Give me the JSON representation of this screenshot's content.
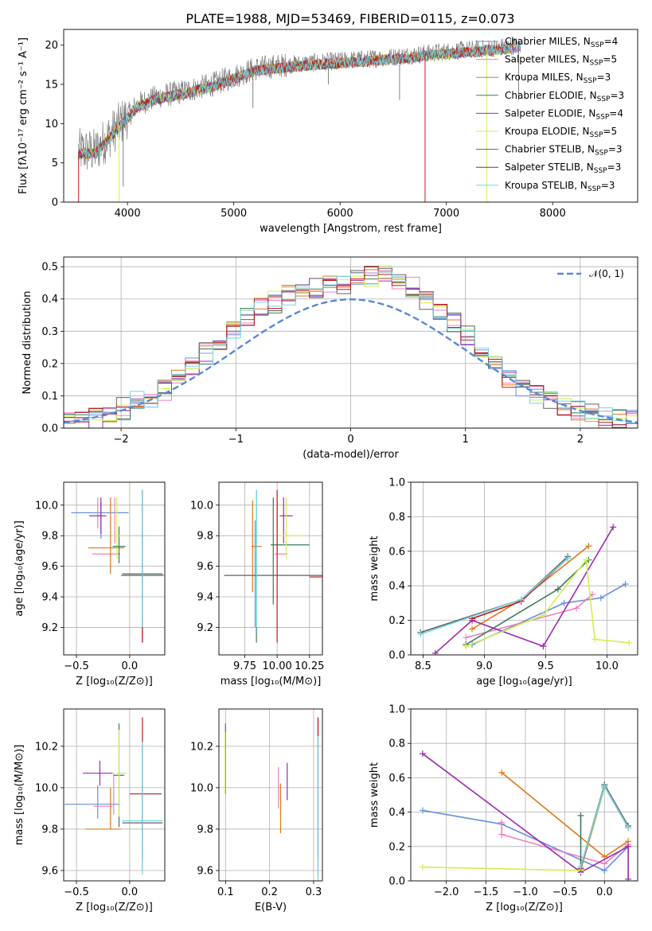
{
  "figure_title": "PLATE=1988, MJD=53469, FIBERID=0115, z=0.073",
  "colors": {
    "Chabrier MILES": "#6890e0",
    "Salpeter MILES": "#f080c0",
    "Kroupa MILES": "#e07818",
    "Chabrier ELODIE": "#3c7a5c",
    "Salpeter ELODIE": "#9c2cb0",
    "Kroupa ELODIE": "#d0f050",
    "Chabrier STELIB": "#606060",
    "Salpeter STELIB": "#c01818",
    "Kroupa STELIB": "#70d8e8"
  },
  "legend": [
    {
      "key": "Chabrier MILES",
      "name": "Chabrier MILES, N",
      "n": "4"
    },
    {
      "key": "Salpeter MILES",
      "name": "Salpeter MILES, N",
      "n": "5"
    },
    {
      "key": "Kroupa MILES",
      "name": "Kroupa MILES, N",
      "n": "3"
    },
    {
      "key": "Chabrier ELODIE",
      "name": "Chabrier ELODIE, N",
      "n": "3"
    },
    {
      "key": "Salpeter ELODIE",
      "name": "Salpeter ELODIE, N",
      "n": "4"
    },
    {
      "key": "Kroupa ELODIE",
      "name": "Kroupa ELODIE, N",
      "n": "5"
    },
    {
      "key": "Chabrier STELIB",
      "name": "Chabrier STELIB, N",
      "n": "3"
    },
    {
      "key": "Salpeter STELIB",
      "name": "Salpeter STELIB, N",
      "n": "3"
    },
    {
      "key": "Kroupa STELIB",
      "name": "Kroupa STELIB, N",
      "n": "3"
    }
  ],
  "legend_sub": "SSP",
  "chart_data": [
    {
      "id": "spectrum",
      "type": "line",
      "xlabel": "wavelength [Angstrom, rest frame]",
      "ylabel": "Flux [fλ10⁻¹⁷ erg cm⁻² s⁻¹ A⁻¹]",
      "xlim": [
        3400,
        8800
      ],
      "ylim": [
        0,
        22
      ],
      "xticks": [
        4000,
        5000,
        6000,
        7000,
        8000
      ],
      "yticks": [
        0,
        5,
        10,
        15,
        20
      ],
      "legend_position": "upper right",
      "grid": false,
      "continuum": [
        [
          3540,
          6.5
        ],
        [
          3700,
          6.5
        ],
        [
          3900,
          9.5
        ],
        [
          4000,
          11.0
        ],
        [
          4100,
          12.5
        ],
        [
          4300,
          13.5
        ],
        [
          4500,
          14.0
        ],
        [
          4800,
          15.0
        ],
        [
          5000,
          16.0
        ],
        [
          5200,
          17.0
        ],
        [
          5500,
          17.5
        ],
        [
          6000,
          18.0
        ],
        [
          6500,
          18.5
        ],
        [
          7000,
          19.2
        ],
        [
          7500,
          19.7
        ],
        [
          7700,
          20.0
        ]
      ],
      "spike_drops": [
        [
          3540,
          0
        ],
        [
          3920,
          0
        ],
        [
          3960,
          2
        ],
        [
          5180,
          12
        ],
        [
          5890,
          15
        ],
        [
          6560,
          13
        ],
        [
          6800,
          0
        ],
        [
          7380,
          0
        ],
        [
          7680,
          13
        ]
      ]
    },
    {
      "id": "residuals",
      "type": "line",
      "xlabel": "(data-model)/error",
      "ylabel": "Normed distribution",
      "xlim": [
        -2.5,
        2.5
      ],
      "ylim": [
        0,
        0.53
      ],
      "xticks": [
        -2,
        -1,
        0,
        1,
        2
      ],
      "yticks": [
        0.0,
        0.1,
        0.2,
        0.3,
        0.4,
        0.5
      ],
      "grid": true,
      "legend_label": "𝒩(0, 1)",
      "legend_position": "upper right",
      "reference": "normal(0,1)",
      "histogram_shape": [
        0.02,
        0.025,
        0.03,
        0.04,
        0.06,
        0.08,
        0.1,
        0.12,
        0.15,
        0.19,
        0.23,
        0.27,
        0.31,
        0.34,
        0.37,
        0.39,
        0.41,
        0.42,
        0.43,
        0.44,
        0.45,
        0.46,
        0.47,
        0.47,
        0.46,
        0.44,
        0.4,
        0.37,
        0.33,
        0.29,
        0.25,
        0.2,
        0.16,
        0.13,
        0.1,
        0.08,
        0.06,
        0.05,
        0.04,
        0.03,
        0.025,
        0.02
      ]
    },
    {
      "id": "age-vs-Z",
      "type": "scatter",
      "xlabel": "Z [log₁₀(Z/Z⊙)]",
      "ylabel": "age  [log₁₀(age/yr)]",
      "xlim": [
        -0.62,
        0.33
      ],
      "ylim": [
        9.02,
        10.15
      ],
      "xticks": [
        -0.5,
        0.0
      ],
      "yticks": [
        9.2,
        9.4,
        9.6,
        9.8,
        10.0
      ],
      "grid": true,
      "errorbars": [
        {
          "s": "Chabrier MILES",
          "x": -0.28,
          "y": 9.95,
          "xe": 0.27,
          "ye": 0.0
        },
        {
          "s": "Chabrier MILES",
          "x": -0.27,
          "y": 9.9,
          "xe": 0.0,
          "ye": 0.12
        },
        {
          "s": "Salpeter MILES",
          "x": -0.3,
          "y": 9.95,
          "xe": 0.0,
          "ye": 0.1
        },
        {
          "s": "Salpeter MILES",
          "x": -0.22,
          "y": 9.68,
          "xe": 0.13,
          "ye": 0.0
        },
        {
          "s": "Salpeter MILES",
          "x": -0.14,
          "y": 9.9,
          "xe": 0.0,
          "ye": 0.15
        },
        {
          "s": "Kroupa MILES",
          "x": -0.22,
          "y": 9.72,
          "xe": 0.17,
          "ye": 0.0
        },
        {
          "s": "Kroupa MILES",
          "x": -0.18,
          "y": 9.8,
          "xe": 0.0,
          "ye": 0.25
        },
        {
          "s": "Chabrier ELODIE",
          "x": -0.1,
          "y": 9.74,
          "xe": 0.0,
          "ye": 0.12
        },
        {
          "s": "Chabrier ELODIE",
          "x": 0.12,
          "y": 9.54,
          "xe": 0.2,
          "ye": 0.0
        },
        {
          "s": "Salpeter ELODIE",
          "x": -0.3,
          "y": 9.93,
          "xe": 0.08,
          "ye": 0.0
        },
        {
          "s": "Salpeter ELODIE",
          "x": -0.27,
          "y": 9.93,
          "xe": 0.0,
          "ye": 0.12
        },
        {
          "s": "Kroupa ELODIE",
          "x": -0.12,
          "y": 9.85,
          "xe": 0.0,
          "ye": 0.2
        },
        {
          "s": "Kroupa ELODIE",
          "x": -0.11,
          "y": 9.8,
          "xe": 0.06,
          "ye": 0.0
        },
        {
          "s": "Chabrier STELIB",
          "x": 0.12,
          "y": 9.55,
          "xe": 0.19,
          "ye": 0.0
        },
        {
          "s": "Chabrier STELIB",
          "x": 0.12,
          "y": 9.6,
          "xe": 0.0,
          "ye": 0.5
        },
        {
          "s": "Salpeter STELIB",
          "x": 0.12,
          "y": 9.6,
          "xe": 0.0,
          "ye": 0.5
        },
        {
          "s": "Kroupa STELIB",
          "x": 0.12,
          "y": 9.65,
          "xe": 0.0,
          "ye": 0.45
        },
        {
          "s": "Chabrier ELODIE",
          "x": -0.1,
          "y": 9.73,
          "xe": 0.06,
          "ye": 0.0
        }
      ]
    },
    {
      "id": "age-vs-mass",
      "type": "scatter",
      "xlabel": "mass [log₁₀(M/M⊙)]",
      "xlim": [
        9.55,
        10.35
      ],
      "ylim": [
        9.02,
        10.15
      ],
      "xticks": [
        9.75,
        10.0,
        10.25
      ],
      "yticks": [
        9.2,
        9.4,
        9.6,
        9.8,
        10.0
      ],
      "grid": true,
      "errorbars": [
        {
          "s": "Chabrier MILES",
          "x": 9.83,
          "y": 9.55,
          "xe": 0.0,
          "ye": 0.35
        },
        {
          "s": "Salpeter MILES",
          "x": 10.03,
          "y": 9.68,
          "xe": 0.05,
          "ye": 0.0
        },
        {
          "s": "Salpeter MILES",
          "x": 10.0,
          "y": 9.85,
          "xe": 0.0,
          "ye": 0.18
        },
        {
          "s": "Kroupa MILES",
          "x": 9.81,
          "y": 9.73,
          "xe": 0.0,
          "ye": 0.3
        },
        {
          "s": "Kroupa MILES",
          "x": 9.84,
          "y": 9.73,
          "xe": 0.04,
          "ye": 0.0
        },
        {
          "s": "Chabrier ELODIE",
          "x": 10.1,
          "y": 9.74,
          "xe": 0.15,
          "ye": 0.0
        },
        {
          "s": "Chabrier ELODIE",
          "x": 9.84,
          "y": 9.6,
          "xe": 0.0,
          "ye": 0.5
        },
        {
          "s": "Salpeter ELODIE",
          "x": 10.07,
          "y": 9.93,
          "xe": 0.05,
          "ye": 0.0
        },
        {
          "s": "Salpeter ELODIE",
          "x": 10.05,
          "y": 9.9,
          "xe": 0.0,
          "ye": 0.15
        },
        {
          "s": "Kroupa ELODIE",
          "x": 10.1,
          "y": 9.8,
          "xe": 0.11,
          "ye": 0.0
        },
        {
          "s": "Kroupa ELODIE",
          "x": 10.07,
          "y": 9.85,
          "xe": 0.0,
          "ye": 0.2
        },
        {
          "s": "Chabrier STELIB",
          "x": 9.97,
          "y": 9.54,
          "xe": 0.38,
          "ye": 0.0
        },
        {
          "s": "Chabrier STELIB",
          "x": 9.97,
          "y": 9.7,
          "xe": 0.0,
          "ye": 0.35
        },
        {
          "s": "Salpeter STELIB",
          "x": 10.3,
          "y": 9.53,
          "xe": 0.05,
          "ye": 0.0
        },
        {
          "s": "Salpeter STELIB",
          "x": 10.0,
          "y": 9.6,
          "xe": 0.0,
          "ye": 0.5
        },
        {
          "s": "Kroupa STELIB",
          "x": 9.84,
          "y": 9.65,
          "xe": 0.0,
          "ye": 0.45
        }
      ]
    },
    {
      "id": "massweight-vs-age",
      "type": "line",
      "xlabel": "age  [log₁₀(age/yr)]",
      "ylabel": "mass weight",
      "xlim": [
        8.4,
        10.25
      ],
      "ylim": [
        0,
        1
      ],
      "xticks": [
        8.5,
        9.0,
        9.5,
        10.0
      ],
      "yticks": [
        0.0,
        0.2,
        0.4,
        0.6,
        0.8,
        1.0
      ],
      "grid": true,
      "series": [
        {
          "s": "Chabrier MILES",
          "x": [
            8.9,
            9.65,
            9.95,
            10.15
          ],
          "y": [
            0.06,
            0.3,
            0.33,
            0.41
          ]
        },
        {
          "s": "Salpeter MILES",
          "x": [
            8.85,
            9.75,
            9.88
          ],
          "y": [
            0.1,
            0.27,
            0.35
          ]
        },
        {
          "s": "Kroupa MILES",
          "x": [
            8.9,
            9.3,
            9.85
          ],
          "y": [
            0.15,
            0.32,
            0.63
          ]
        },
        {
          "s": "Chabrier ELODIE",
          "x": [
            8.85,
            9.6,
            9.85
          ],
          "y": [
            0.06,
            0.38,
            0.55
          ]
        },
        {
          "s": "Salpeter ELODIE",
          "x": [
            8.6,
            8.9,
            9.48,
            10.05
          ],
          "y": [
            0.01,
            0.2,
            0.05,
            0.74
          ]
        },
        {
          "s": "Kroupa ELODIE",
          "x": [
            8.85,
            9.48,
            9.83,
            9.9,
            10.18
          ],
          "y": [
            0.05,
            0.23,
            0.55,
            0.09,
            0.07
          ]
        },
        {
          "s": "Chabrier STELIB",
          "x": [
            8.48,
            9.3,
            9.68
          ],
          "y": [
            0.13,
            0.32,
            0.57
          ]
        },
        {
          "s": "Salpeter STELIB",
          "x": [
            8.9,
            9.3,
            9.68
          ],
          "y": [
            0.21,
            0.31,
            0.56
          ]
        },
        {
          "s": "Kroupa STELIB",
          "x": [
            8.48,
            9.3,
            9.68
          ],
          "y": [
            0.12,
            0.32,
            0.56
          ]
        }
      ]
    },
    {
      "id": "mass-vs-Z",
      "type": "scatter",
      "xlabel": "Z [log₁₀(Z/Z⊙)]",
      "ylabel": "mass [log₁₀(M/M⊙)]",
      "xlim": [
        -0.62,
        0.33
      ],
      "ylim": [
        9.55,
        10.38
      ],
      "xticks": [
        -0.5,
        0.0
      ],
      "yticks": [
        9.6,
        9.8,
        10.0,
        10.2
      ],
      "grid": true,
      "errorbars": [
        {
          "s": "Chabrier MILES",
          "x": -0.35,
          "y": 9.92,
          "xe": 0.26,
          "ye": 0.0
        },
        {
          "s": "Chabrier MILES",
          "x": -0.3,
          "y": 9.93,
          "xe": 0.0,
          "ye": 0.08
        },
        {
          "s": "Salpeter MILES",
          "x": -0.25,
          "y": 9.91,
          "xe": 0.09,
          "ye": 0.0
        },
        {
          "s": "Salpeter MILES",
          "x": -0.15,
          "y": 9.97,
          "xe": 0.0,
          "ye": 0.1
        },
        {
          "s": "Kroupa MILES",
          "x": -0.25,
          "y": 9.8,
          "xe": 0.17,
          "ye": 0.0
        },
        {
          "s": "Kroupa MILES",
          "x": -0.18,
          "y": 9.9,
          "xe": 0.0,
          "ye": 0.1
        },
        {
          "s": "Chabrier ELODIE",
          "x": -0.1,
          "y": 10.06,
          "xe": 0.0,
          "ye": 0.25
        },
        {
          "s": "Chabrier ELODIE",
          "x": -0.1,
          "y": 10.06,
          "xe": 0.05,
          "ye": 0.0
        },
        {
          "s": "Salpeter ELODIE",
          "x": -0.3,
          "y": 10.07,
          "xe": 0.14,
          "ye": 0.0
        },
        {
          "s": "Salpeter ELODIE",
          "x": -0.28,
          "y": 10.07,
          "xe": 0.0,
          "ye": 0.06
        },
        {
          "s": "Kroupa ELODIE",
          "x": -0.1,
          "y": 10.07,
          "xe": 0.0,
          "ye": 0.21
        },
        {
          "s": "Kroupa ELODIE",
          "x": -0.08,
          "y": 10.07,
          "xe": 0.05,
          "ye": 0.0
        },
        {
          "s": "Chabrier STELIB",
          "x": 0.12,
          "y": 9.83,
          "xe": 0.19,
          "ye": 0.0
        },
        {
          "s": "Chabrier STELIB",
          "x": 0.12,
          "y": 9.9,
          "xe": 0.0,
          "ye": 0.3
        },
        {
          "s": "Salpeter STELIB",
          "x": 0.15,
          "y": 9.97,
          "xe": 0.15,
          "ye": 0.0
        },
        {
          "s": "Salpeter STELIB",
          "x": 0.12,
          "y": 10.0,
          "xe": 0.0,
          "ye": 0.34
        },
        {
          "s": "Kroupa STELIB",
          "x": 0.12,
          "y": 9.84,
          "xe": 0.19,
          "ye": 0.0
        },
        {
          "s": "Kroupa STELIB",
          "x": 0.12,
          "y": 9.9,
          "xe": 0.0,
          "ye": 0.32
        }
      ]
    },
    {
      "id": "mass-vs-ebv",
      "type": "scatter",
      "xlabel": "E(B-V)",
      "xlim": [
        0.085,
        0.32
      ],
      "ylim": [
        9.55,
        10.38
      ],
      "xticks": [
        0.1,
        0.2,
        0.3
      ],
      "yticks": [
        9.6,
        9.8,
        10.0,
        10.2
      ],
      "grid": true,
      "errorbars": [
        {
          "s": "Chabrier ELODIE",
          "x": 0.1,
          "y": 10.14,
          "xe": 0.0,
          "ye": 0.17
        },
        {
          "s": "Kroupa ELODIE",
          "x": 0.099,
          "y": 10.12,
          "xe": 0.0,
          "ye": 0.15
        },
        {
          "s": "Salpeter MILES",
          "x": 0.22,
          "y": 10.0,
          "xe": 0.0,
          "ye": 0.1
        },
        {
          "s": "Kroupa MILES",
          "x": 0.225,
          "y": 9.9,
          "xe": 0.0,
          "ye": 0.12
        },
        {
          "s": "Salpeter ELODIE",
          "x": 0.24,
          "y": 10.03,
          "xe": 0.0,
          "ye": 0.09
        },
        {
          "s": "Chabrier STELIB",
          "x": 0.31,
          "y": 9.95,
          "xe": 0.0,
          "ye": 0.38
        },
        {
          "s": "Salpeter STELIB",
          "x": 0.31,
          "y": 10.0,
          "xe": 0.0,
          "ye": 0.34
        },
        {
          "s": "Kroupa STELIB",
          "x": 0.31,
          "y": 9.9,
          "xe": 0.0,
          "ye": 0.35
        }
      ]
    },
    {
      "id": "massweight-vs-Z",
      "type": "line",
      "xlabel": "Z [log₁₀(Z/Z⊙)]",
      "ylabel": "mass weight",
      "xlim": [
        -2.45,
        0.42
      ],
      "ylim": [
        0,
        1
      ],
      "xticks": [
        -2.0,
        -1.5,
        -1.0,
        -0.5,
        0.0
      ],
      "yticks": [
        0.0,
        0.2,
        0.4,
        0.6,
        0.8,
        1.0
      ],
      "grid": true,
      "series": [
        {
          "s": "Chabrier MILES",
          "x": [
            -2.3,
            -1.3,
            0.0,
            0.3
          ],
          "y": [
            0.41,
            0.33,
            0.06,
            0.2
          ]
        },
        {
          "s": "Salpeter MILES",
          "x": [
            -1.3,
            -1.3,
            0.0,
            0.3
          ],
          "y": [
            0.34,
            0.27,
            0.1,
            0.21
          ]
        },
        {
          "s": "Kroupa MILES",
          "x": [
            -1.3,
            0.0,
            0.3
          ],
          "y": [
            0.63,
            0.14,
            0.23
          ]
        },
        {
          "s": "Chabrier ELODIE",
          "x": [
            -0.3,
            -0.3,
            0.0
          ],
          "y": [
            0.38,
            0.07,
            0.55
          ]
        },
        {
          "s": "Salpeter ELODIE",
          "x": [
            -2.3,
            -0.3,
            0.3,
            0.3
          ],
          "y": [
            0.74,
            0.05,
            0.2,
            0.01
          ]
        },
        {
          "s": "Kroupa ELODIE",
          "x": [
            -2.3,
            -0.3,
            0.0
          ],
          "y": [
            0.08,
            0.06,
            0.54
          ]
        },
        {
          "s": "Chabrier STELIB",
          "x": [
            -0.3,
            0.0,
            0.3
          ],
          "y": [
            0.08,
            0.56,
            0.32
          ]
        },
        {
          "s": "Salpeter STELIB",
          "x": [
            -0.3,
            0.0,
            0.3
          ],
          "y": [
            0.07,
            0.55,
            0.31
          ]
        },
        {
          "s": "Kroupa STELIB",
          "x": [
            -0.3,
            0.0,
            0.3
          ],
          "y": [
            0.08,
            0.55,
            0.31
          ]
        }
      ]
    }
  ]
}
